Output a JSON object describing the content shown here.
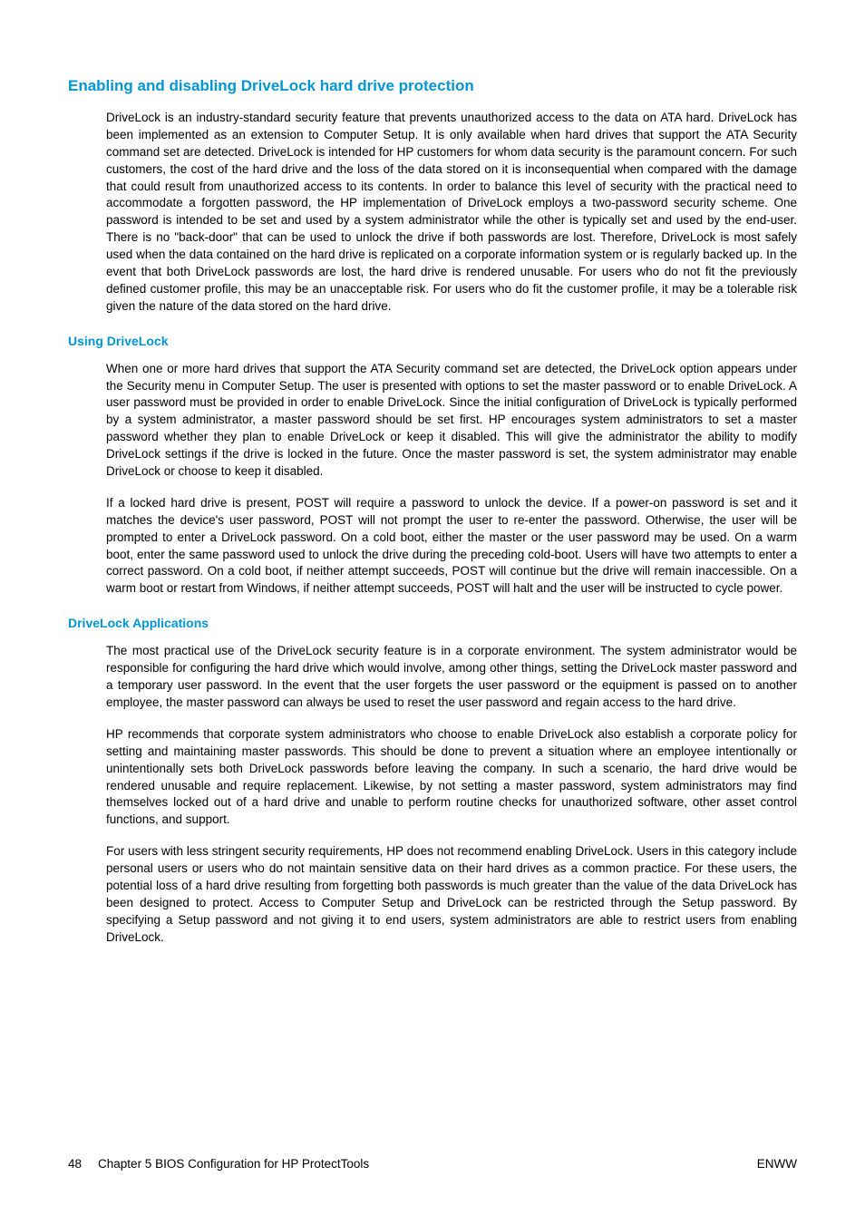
{
  "colors": {
    "heading": "#0096d6",
    "text": "#000000",
    "background": "#ffffff"
  },
  "typography": {
    "font_family": "Arial, Helvetica, sans-serif",
    "h1_fontsize": 17,
    "h2_fontsize": 14,
    "body_fontsize": 13.5,
    "line_height": 1.4
  },
  "headings": {
    "main": "Enabling and disabling DriveLock hard drive protection",
    "sub1": "Using DriveLock",
    "sub2": "DriveLock Applications"
  },
  "paragraphs": {
    "intro": "DriveLock is an industry-standard security feature that prevents unauthorized access to the data on ATA hard. DriveLock has been implemented as an extension to Computer Setup. It is only available when hard drives that support the ATA Security command set are detected. DriveLock is intended for HP customers for whom data security is the paramount concern. For such customers, the cost of the hard drive and the loss of the data stored on it is inconsequential when compared with the damage that could result from unauthorized access to its contents. In order to balance this level of security with the practical need to accommodate a forgotten password, the HP implementation of DriveLock employs a two-password security scheme. One password is intended to be set and used by a system administrator while the other is typically set and used by the end-user. There is no \"back-door\" that can be used to unlock the drive if both passwords are lost. Therefore, DriveLock is most safely used when the data contained on the hard drive is replicated on a corporate information system or is regularly backed up. In the event that both DriveLock passwords are lost, the hard drive is rendered unusable. For users who do not fit the previously defined customer profile, this may be an unacceptable risk. For users who do fit the customer profile, it may be a tolerable risk given the nature of the data stored on the hard drive.",
    "using1": "When one or more hard drives that support the ATA Security command set are detected, the DriveLock option appears under the Security menu in Computer Setup. The user is presented with options to set the master password or to enable DriveLock. A user password must be provided in order to enable DriveLock. Since the initial configuration of DriveLock is typically performed by a system administrator, a master password should be set first. HP encourages system administrators to set a master password whether they plan to enable DriveLock or keep it disabled. This will give the administrator the ability to modify DriveLock settings if the drive is locked in the future. Once the master password is set, the system administrator may enable DriveLock or choose to keep it disabled.",
    "using2": "If a locked hard drive is present, POST will require a password to unlock the device. If a power-on password is set and it matches the device's user password, POST will not prompt the user to re-enter the password. Otherwise, the user will be prompted to enter a DriveLock password. On a cold boot, either the master or the user password may be used. On a warm boot, enter the same password used to unlock the drive during the preceding cold-boot. Users will have two attempts to enter a correct password. On a cold boot, if neither attempt succeeds, POST will continue but the drive will remain inaccessible. On a warm boot or restart from Windows, if neither attempt succeeds, POST will halt and the user will be instructed to cycle power.",
    "apps1": "The most practical use of the DriveLock security feature is in a corporate environment. The system administrator would be responsible for configuring the hard drive which would involve, among other things, setting the DriveLock master password and a temporary user password. In the event that the user forgets the user password or the equipment is passed on to another employee, the master password can always be used to reset the user password and regain access to the hard drive.",
    "apps2": "HP recommends that corporate system administrators who choose to enable DriveLock also establish a corporate policy for setting and maintaining master passwords. This should be done to prevent a situation where an employee intentionally or unintentionally sets both DriveLock passwords before leaving the company. In such a scenario, the hard drive would be rendered unusable and require replacement. Likewise, by not setting a master password, system administrators may find themselves locked out of a hard drive and unable to perform routine checks for unauthorized software, other asset control functions, and support.",
    "apps3": "For users with less stringent security requirements, HP does not recommend enabling DriveLock. Users in this category include personal users or users who do not maintain sensitive data on their hard drives as a common practice. For these users, the potential loss of a hard drive resulting from forgetting both passwords is much greater than the value of the data DriveLock has been designed to protect. Access to Computer Setup and DriveLock can be restricted through the Setup password. By specifying a Setup password and not giving it to end users, system administrators are able to restrict users from enabling DriveLock."
  },
  "footer": {
    "page_number": "48",
    "chapter": "Chapter 5   BIOS Configuration for HP ProtectTools",
    "right": "ENWW"
  }
}
